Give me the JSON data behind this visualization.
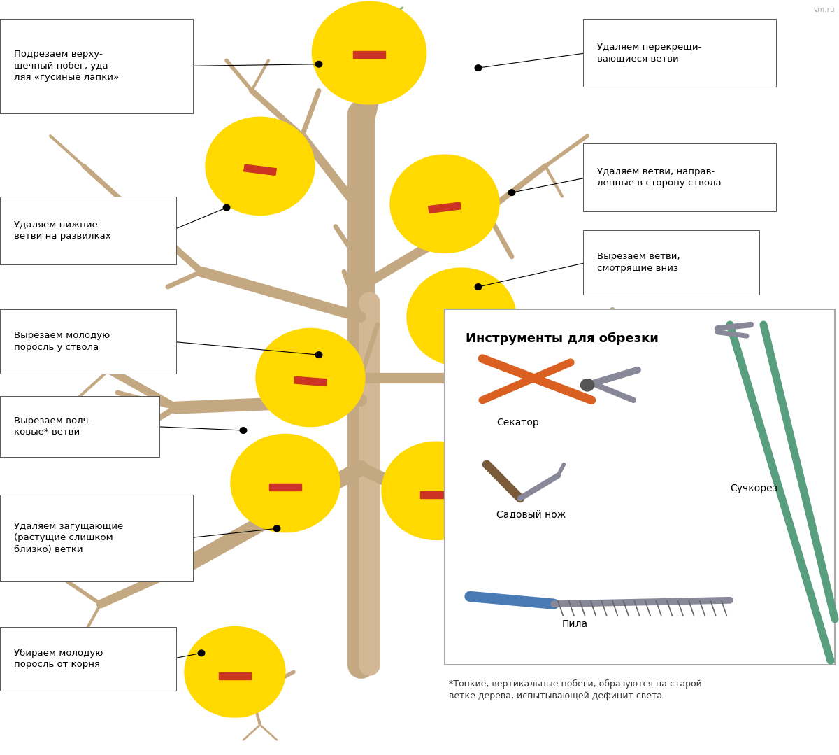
{
  "bg_color": "#ffffff",
  "tree_color": "#C4A882",
  "tree_light": "#D4B896",
  "yellow": "#FFD900",
  "red": "#CC3322",
  "green": "#8BAF6E",
  "title_tools": "Инструменты для обрезки",
  "footnote": "*Тонкие, вертикальные побеги, образуются на старой\nветке дерева, испытывающей дефицит света",
  "watermark": "vm.ru",
  "orange": "#D96020",
  "steel": "#888899",
  "teal": "#5A9E80",
  "blue_handle": "#4A7AB4",
  "brown": "#7B5A3A"
}
